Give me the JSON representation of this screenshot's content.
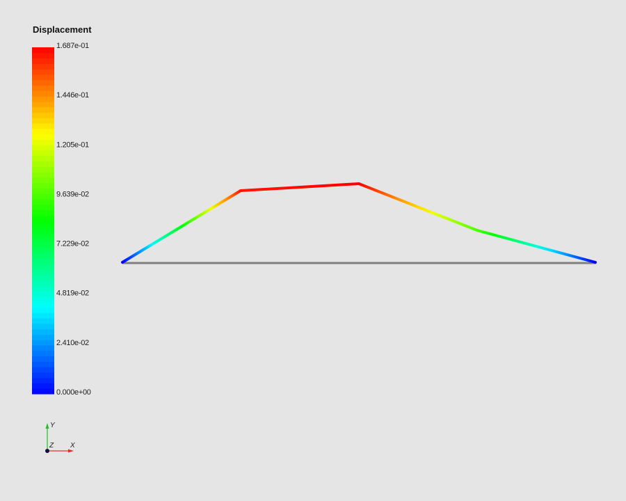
{
  "colorbar": {
    "title": "Displacement",
    "min": 0,
    "max": 0.1687,
    "tick_labels": [
      "1.687e-01",
      "1.446e-01",
      "1.205e-01",
      "9.639e-02",
      "7.229e-02",
      "4.819e-02",
      "2.410e-02",
      "0.000e+00"
    ],
    "tick_values": [
      0.1687,
      0.1446,
      0.1205,
      0.09639,
      0.07229,
      0.04819,
      0.0241,
      0.0
    ],
    "colormap": [
      "#0000ff",
      "#00ffff",
      "#00ff00",
      "#ffff00",
      "#ff0000"
    ],
    "bands": 64
  },
  "axes_triad": {
    "x_label": "X",
    "y_label": "Y",
    "z_label": "Z",
    "x_color": "#e03030",
    "y_color": "#20c020",
    "z_color": "#101040"
  },
  "model": {
    "undeformed_color": "#808080",
    "deformed_displacement": [
      0.0,
      0.165,
      0.1687,
      0.097,
      0.0
    ]
  }
}
